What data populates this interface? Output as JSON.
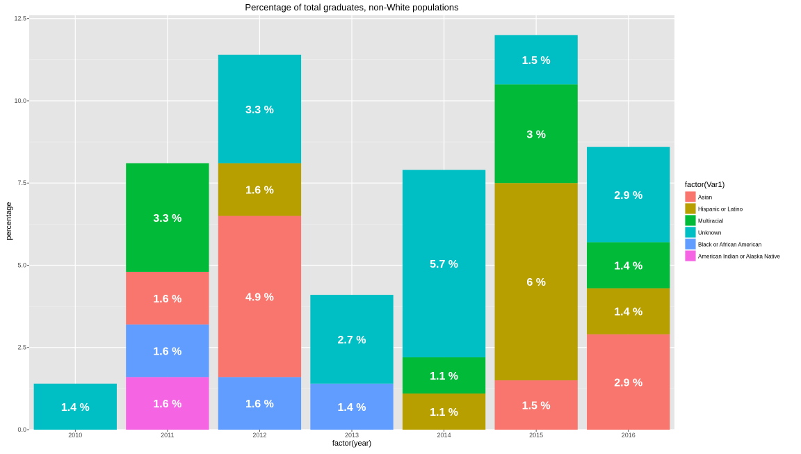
{
  "chart_data": {
    "type": "bar",
    "stacked": true,
    "title": "Percentage of total graduates, non-White populations",
    "xlabel": "factor(year)",
    "ylabel": "percentage",
    "categories": [
      "2010",
      "2011",
      "2012",
      "2013",
      "2014",
      "2015",
      "2016"
    ],
    "ylim": [
      0,
      12.6
    ],
    "yticks": [
      0.0,
      2.5,
      5.0,
      7.5,
      10.0,
      12.5
    ],
    "ytick_labels": [
      "0.0",
      "2.5",
      "5.0",
      "7.5",
      "10.0",
      "12.5"
    ],
    "grid": true,
    "legend": {
      "title": "factor(Var1)",
      "position": "right",
      "entries": [
        "Asian",
        "Hispanic or Latino",
        "Multiracial",
        "Unknown",
        "Black or African American",
        "American Indian or Alaska Native"
      ]
    },
    "stack_order_bottom_to_top": [
      "American Indian or Alaska Native",
      "Black or African American",
      "Asian",
      "Hispanic or Latino",
      "Multiracial",
      "Unknown"
    ],
    "series": [
      {
        "name": "Asian",
        "color": "#F8766D",
        "values": [
          0,
          1.6,
          4.9,
          0,
          0,
          1.5,
          2.9
        ],
        "labels": [
          "",
          "1.6 %",
          "4.9 %",
          "",
          "",
          "1.5 %",
          "2.9 %"
        ]
      },
      {
        "name": "Hispanic or Latino",
        "color": "#B79F00",
        "values": [
          0,
          0,
          1.6,
          0,
          1.1,
          6,
          1.4
        ],
        "labels": [
          "",
          "",
          "1.6 %",
          "",
          "1.1 %",
          "6 %",
          "1.4 %"
        ]
      },
      {
        "name": "Multiracial",
        "color": "#00BA38",
        "values": [
          0,
          3.3,
          0,
          0,
          1.1,
          3,
          1.4
        ],
        "labels": [
          "",
          "3.3 %",
          "",
          "",
          "1.1 %",
          "3 %",
          "1.4 %"
        ]
      },
      {
        "name": "Unknown",
        "color": "#00BFC4",
        "values": [
          1.4,
          0,
          3.3,
          2.7,
          5.7,
          1.5,
          2.9
        ],
        "labels": [
          "1.4 %",
          "",
          "3.3 %",
          "2.7 %",
          "5.7 %",
          "1.5 %",
          "2.9 %"
        ]
      },
      {
        "name": "Black or African American",
        "color": "#619CFF",
        "values": [
          0,
          1.6,
          1.6,
          1.4,
          0,
          0,
          0
        ],
        "labels": [
          "",
          "1.6 %",
          "1.6 %",
          "1.4 %",
          "",
          "",
          ""
        ]
      },
      {
        "name": "American Indian or Alaska Native",
        "color": "#F564E3",
        "values": [
          0,
          1.6,
          0,
          0,
          0,
          0,
          0
        ],
        "labels": [
          "",
          "1.6 %",
          "",
          "",
          "",
          "",
          ""
        ]
      }
    ]
  },
  "style": {
    "panel_background": "#E5E5E5",
    "grid_major": "#FFFFFF",
    "grid_minor": "#F2F2F2"
  }
}
